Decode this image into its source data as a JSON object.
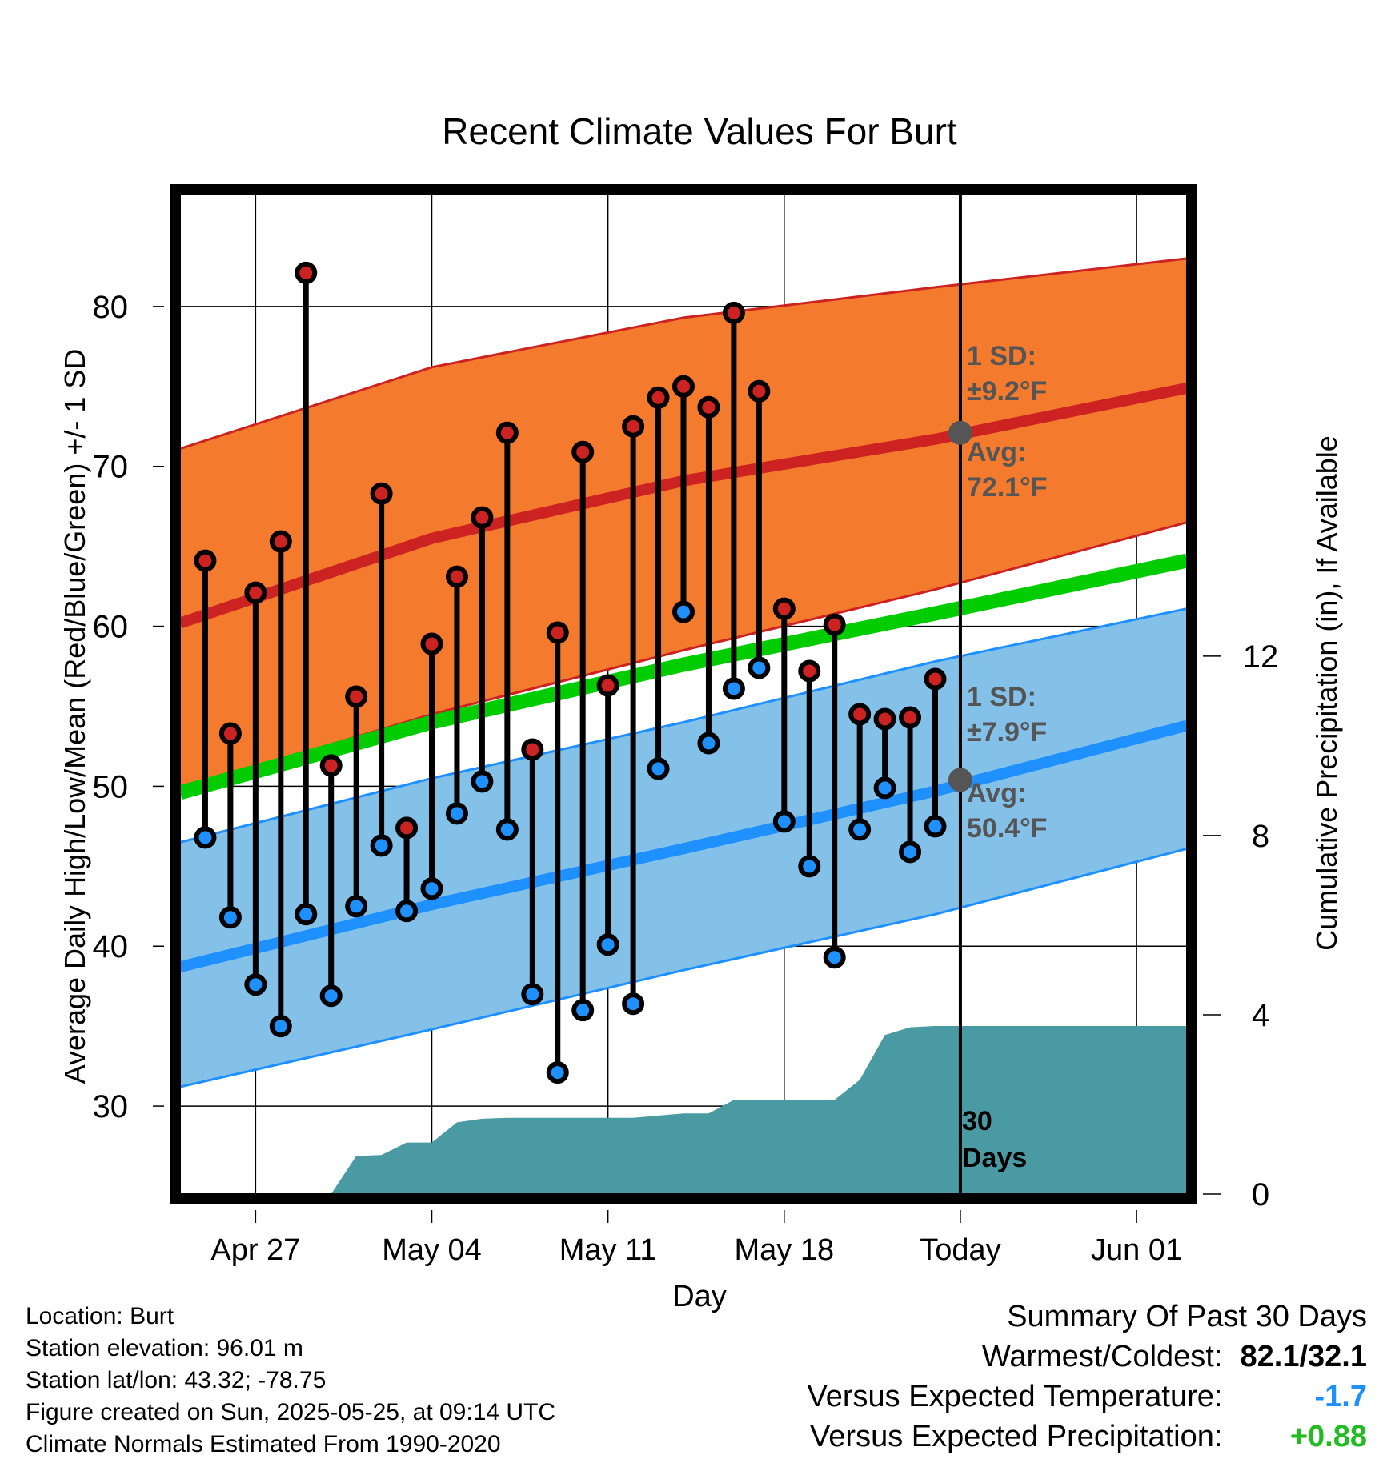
{
  "chart_data": {
    "type": "line",
    "title": "Recent Climate Values For Burt",
    "xlabel": "Day",
    "ylabel_left": "Average Daily High/Low/Mean (Red/Blue/Green) +/- 1 SD",
    "ylabel_right": "Cumulative Precipitation (in), If Available",
    "ylim": [
      24.5,
      87
    ],
    "y2lim": [
      0,
      22.3
    ],
    "y_ticks": [
      30,
      40,
      50,
      60,
      70,
      80
    ],
    "y2_ticks": [
      0,
      4,
      8,
      12
    ],
    "x_tick_labels": [
      "Apr 27",
      "May 04",
      "May 11",
      "May 18",
      "Today",
      "Jun 01"
    ],
    "x_tick_days": [
      "2025-04-27",
      "2025-05-04",
      "2025-05-11",
      "2025-05-18",
      "2025-05-25",
      "2025-06-01"
    ],
    "xlim": [
      "2025-04-24",
      "2025-06-03"
    ],
    "colors": {
      "high": "#cc2222",
      "low": "#1e90ff",
      "high_band": "#f47a2e",
      "low_band": "#84c1e8",
      "mean": "#00cc00",
      "precip": "#4a9aa3",
      "annot": "#555555"
    },
    "normal_high": {
      "dates": [
        "2025-04-24",
        "2025-05-04",
        "2025-05-14",
        "2025-05-24",
        "2025-06-03"
      ],
      "avg": [
        60.2,
        65.5,
        69.1,
        71.7,
        74.9
      ],
      "upper": [
        71.1,
        76.2,
        79.3,
        81.2,
        83.0
      ],
      "lower": [
        49.8,
        54.5,
        58.5,
        62.3,
        66.5
      ]
    },
    "normal_low": {
      "dates": [
        "2025-04-24",
        "2025-05-04",
        "2025-05-14",
        "2025-05-24",
        "2025-06-03"
      ],
      "avg": [
        38.7,
        42.6,
        46.1,
        49.7,
        53.8
      ],
      "upper": [
        46.5,
        50.5,
        54.0,
        57.8,
        61.1
      ],
      "lower": [
        31.2,
        34.8,
        38.5,
        42.0,
        46.1
      ]
    },
    "normal_mean": {
      "dates": [
        "2025-04-24",
        "2025-05-04",
        "2025-05-14",
        "2025-05-24",
        "2025-06-03"
      ],
      "values": [
        49.6,
        54.0,
        57.6,
        60.8,
        64.1
      ]
    },
    "observed": {
      "dates": [
        "2025-04-25",
        "2025-04-26",
        "2025-04-27",
        "2025-04-28",
        "2025-04-29",
        "2025-04-30",
        "2025-05-01",
        "2025-05-02",
        "2025-05-03",
        "2025-05-04",
        "2025-05-05",
        "2025-05-06",
        "2025-05-07",
        "2025-05-08",
        "2025-05-09",
        "2025-05-10",
        "2025-05-11",
        "2025-05-12",
        "2025-05-13",
        "2025-05-14",
        "2025-05-15",
        "2025-05-16",
        "2025-05-17",
        "2025-05-18",
        "2025-05-19",
        "2025-05-20",
        "2025-05-21",
        "2025-05-22",
        "2025-05-23",
        "2025-05-24"
      ],
      "high": [
        64.1,
        53.3,
        62.1,
        65.3,
        82.1,
        51.3,
        55.6,
        68.3,
        47.4,
        58.9,
        63.1,
        66.8,
        72.1,
        52.3,
        59.6,
        70.9,
        56.3,
        72.5,
        74.3,
        75.0,
        73.7,
        79.6,
        74.7,
        61.1,
        57.2,
        60.1,
        54.5,
        54.2,
        54.3,
        56.7
      ],
      "low": [
        46.8,
        41.8,
        37.6,
        35.0,
        42.0,
        36.9,
        42.5,
        46.3,
        42.2,
        43.6,
        48.3,
        50.3,
        47.3,
        37.0,
        32.1,
        36.0,
        40.1,
        36.4,
        51.1,
        60.9,
        52.7,
        56.1,
        57.4,
        47.8,
        45.0,
        39.3,
        47.3,
        49.9,
        45.9,
        47.5
      ]
    },
    "precip_cumulative": {
      "dates": [
        "2025-04-30",
        "2025-05-01",
        "2025-05-02",
        "2025-05-03",
        "2025-05-04",
        "2025-05-05",
        "2025-05-06",
        "2025-05-07",
        "2025-05-08",
        "2025-05-09",
        "2025-05-10",
        "2025-05-11",
        "2025-05-12",
        "2025-05-13",
        "2025-05-14",
        "2025-05-15",
        "2025-05-16",
        "2025-05-17",
        "2025-05-18",
        "2025-05-19",
        "2025-05-20",
        "2025-05-21",
        "2025-05-22",
        "2025-05-23",
        "2025-05-24",
        "2025-05-25",
        "2025-06-03"
      ],
      "values": [
        0.0,
        0.85,
        0.87,
        1.15,
        1.15,
        1.6,
        1.68,
        1.7,
        1.7,
        1.7,
        1.7,
        1.7,
        1.7,
        1.75,
        1.8,
        1.8,
        2.1,
        2.1,
        2.1,
        2.1,
        2.1,
        2.55,
        3.55,
        3.72,
        3.75,
        3.75,
        3.75
      ]
    },
    "today": "2025-05-25",
    "annotations": {
      "high_sd_label": "1 SD:",
      "high_sd_value": "±9.2°F",
      "high_avg_label": "Avg:",
      "high_avg_value": "72.1°F",
      "high_avg": 72.1,
      "low_sd_label": "1 SD:",
      "low_sd_value": "±7.9°F",
      "low_avg_label": "Avg:",
      "low_avg_value": "50.4°F",
      "low_avg": 50.4,
      "days_num": "30",
      "days_label": "Days"
    }
  },
  "info": {
    "location": "Location: Burt",
    "elevation": "Station elevation: 96.01 m",
    "latlon": "Station lat/lon: 43.32; -78.75",
    "created": "Figure created on Sun, 2025-05-25, at 09:14 UTC",
    "normals": "Climate Normals Estimated From 1990-2020"
  },
  "summary": {
    "title": "Summary Of Past 30 Days",
    "warmest_label": "Warmest/Coldest:",
    "warmest_value": "82.1/32.1",
    "temp_label": "Versus Expected Temperature:",
    "temp_value": "-1.7",
    "temp_color": "#1e90ff",
    "precip_label": "Versus Expected Precipitation:",
    "precip_value": "+0.88",
    "precip_color": "#22bb22"
  }
}
